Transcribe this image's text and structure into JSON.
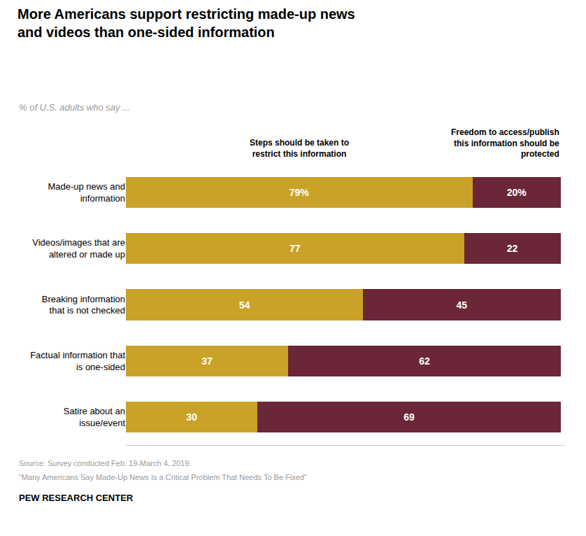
{
  "chart_data": {
    "type": "bar",
    "orientation": "horizontal",
    "stacked": true,
    "title": "More Americans support restricting made-up news\nand videos than one-sided information",
    "subtitle": "% of U.S. adults who say ...",
    "categories": [
      "Made-up news and\ninformation",
      "Videos/images that are\naltered or made up",
      "Breaking information\nthat is not checked",
      "Factual information that\nis one-sided",
      "Satire about an\nissue/event"
    ],
    "series": [
      {
        "name": "Steps should be taken to\nrestrict this information",
        "color": "#C9A227",
        "values": [
          79,
          77,
          54,
          37,
          30
        ],
        "value_labels": [
          "79%",
          "77",
          "54",
          "37",
          "30"
        ]
      },
      {
        "name": "Freedom to access/publish\nthis information should be\nprotected",
        "color": "#6B2737",
        "values": [
          20,
          22,
          45,
          62,
          69
        ],
        "value_labels": [
          "20%",
          "22",
          "45",
          "62",
          "69"
        ]
      }
    ],
    "xlim": [
      0,
      100
    ],
    "grid": false,
    "data_labels": true,
    "tick_labels": "y",
    "annotations": [
      "Source: Survey conducted Feb. 19-March 4, 2019.",
      "“Many Americans Say Made-Up News Is a Critical Problem That Needs To Be Fixed”",
      "PEW RESEARCH CENTER"
    ]
  }
}
